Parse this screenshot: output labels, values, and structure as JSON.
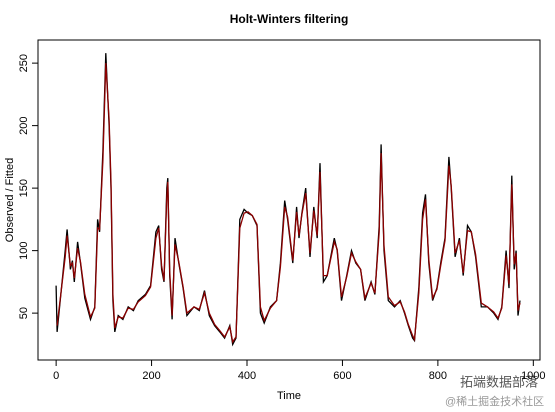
{
  "chart_data": {
    "type": "line",
    "title": "Holt-Winters filtering",
    "x_label": "Time",
    "y_label": "Observed / Fitted",
    "annotations": [
      "拓端数据部落",
      "@稀土掘金技术社区"
    ],
    "xlim": [
      -38,
      1014
    ],
    "ylim": [
      12.5,
      268.5
    ],
    "xticks": [
      0,
      200,
      400,
      600,
      800,
      1000
    ],
    "yticks": [
      50,
      100,
      150,
      200,
      250
    ],
    "x": [
      0,
      2,
      19,
      23,
      30,
      34,
      38,
      45,
      51,
      60,
      72,
      81,
      87,
      91,
      98,
      104,
      111,
      115,
      119,
      123,
      130,
      140,
      151,
      162,
      172,
      187,
      198,
      209,
      215,
      221,
      226,
      232,
      234,
      238,
      243,
      249,
      257,
      266,
      274,
      289,
      300,
      311,
      321,
      332,
      343,
      353,
      364,
      370,
      377,
      385,
      394,
      402,
      411,
      421,
      428,
      436,
      449,
      462,
      470,
      479,
      485,
      496,
      504,
      509,
      515,
      523,
      532,
      540,
      547,
      553,
      560,
      568,
      583,
      589,
      598,
      609,
      619,
      628,
      638,
      647,
      660,
      668,
      677,
      681,
      687,
      696,
      709,
      721,
      730,
      738,
      747,
      751,
      760,
      768,
      774,
      781,
      789,
      798,
      806,
      815,
      823,
      828,
      836,
      845,
      853,
      862,
      870,
      879,
      891,
      904,
      917,
      926,
      934,
      943,
      949,
      955,
      960,
      964,
      968,
      972
    ],
    "series": [
      {
        "color": "#000000",
        "values": [
          72,
          35,
          100,
          117,
          85,
          92,
          75,
          107,
          90,
          62,
          45,
          55,
          125,
          115,
          180,
          258,
          200,
          150,
          60,
          35,
          48,
          45,
          55,
          52,
          60,
          65,
          72,
          115,
          120,
          85,
          75,
          150,
          158,
          80,
          45,
          110,
          90,
          70,
          48,
          55,
          52,
          68,
          48,
          40,
          35,
          30,
          40,
          25,
          30,
          125,
          133,
          130,
          128,
          120,
          50,
          42,
          55,
          60,
          90,
          140,
          125,
          90,
          135,
          110,
          130,
          150,
          95,
          135,
          110,
          170,
          75,
          80,
          110,
          100,
          60,
          80,
          100,
          90,
          85,
          60,
          75,
          65,
          120,
          185,
          100,
          60,
          55,
          60,
          50,
          40,
          30,
          28,
          70,
          130,
          145,
          90,
          60,
          70,
          90,
          110,
          175,
          150,
          95,
          110,
          80,
          120,
          115,
          95,
          55,
          55,
          50,
          45,
          55,
          100,
          70,
          160,
          85,
          100,
          48,
          60
        ]
      },
      {
        "color": "#8b0000",
        "values": [
          null,
          40,
          95,
          112,
          88,
          90,
          78,
          102,
          91,
          65,
          47,
          54,
          118,
          117,
          172,
          250,
          205,
          155,
          65,
          38,
          47,
          46,
          54,
          53,
          59,
          64,
          71,
          110,
          118,
          88,
          76,
          143,
          155,
          84,
          48,
          105,
          91,
          71,
          50,
          55,
          53,
          66,
          50,
          41,
          36,
          31,
          39,
          27,
          31,
          118,
          130,
          131,
          128,
          121,
          55,
          44,
          54,
          60,
          87,
          135,
          127,
          92,
          131,
          112,
          129,
          146,
          98,
          132,
          112,
          163,
          80,
          80,
          107,
          101,
          63,
          79,
          98,
          91,
          85,
          62,
          74,
          66,
          115,
          178,
          104,
          63,
          56,
          59,
          51,
          41,
          32,
          29,
          66,
          125,
          141,
          93,
          62,
          69,
          88,
          108,
          168,
          152,
          98,
          108,
          82,
          116,
          115,
          97,
          58,
          55,
          51,
          46,
          54,
          96,
          73,
          153,
          89,
          98,
          52,
          58
        ]
      }
    ]
  }
}
